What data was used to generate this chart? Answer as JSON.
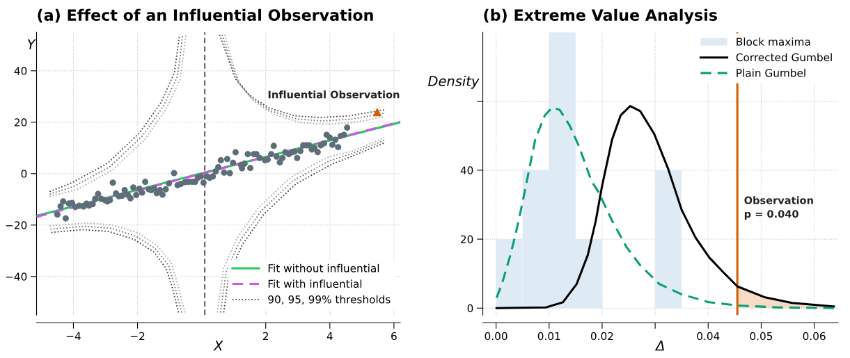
{
  "chart_data": [
    {
      "type": "scatter",
      "title": "(a) Effect of an Influential Observation",
      "xlabel": "X",
      "ylabel": "Y",
      "xlim": [
        -5.15,
        6.2
      ],
      "ylim": [
        -55,
        55
      ],
      "xticks": [
        {
          "value": -4,
          "label": "−4"
        },
        {
          "value": -2,
          "label": "−2"
        },
        2,
        4,
        6
      ],
      "yticks": [
        {
          "value": -40,
          "label": "−40"
        },
        {
          "value": -20,
          "label": "−20"
        },
        0,
        20,
        40
      ],
      "grid": true,
      "legend": "bottom right",
      "ref_lines": [
        {
          "axis": "x",
          "value": 0.1,
          "color": "#222222",
          "line_style": "dashed"
        }
      ],
      "annotations": [
        {
          "text": "Influential Observation",
          "x": 5.48,
          "y": 24.0
        }
      ],
      "series": [
        {
          "marker": "circle",
          "color": "#5e6e78",
          "x": [
            -4.5,
            -4.4,
            -4.32,
            -4.24,
            -4.14,
            -4.04,
            -3.94,
            -3.82,
            -3.68,
            -3.59,
            -3.51,
            -3.4,
            -3.32,
            -3.23,
            -3.13,
            -3.02,
            -2.94,
            -2.86,
            -2.77,
            -2.67,
            -2.58,
            -2.48,
            -2.4,
            -2.3,
            -2.22,
            -2.13,
            -2.04,
            -1.94,
            -1.86,
            -1.76,
            -1.65,
            -1.57,
            -1.48,
            -1.4,
            -1.3,
            -1.22,
            -1.12,
            -1.02,
            -0.86,
            -0.75,
            -0.65,
            -0.52,
            -0.41,
            -0.3,
            -0.2,
            -0.12,
            -0.02,
            0.06,
            0.17,
            0.25,
            0.35,
            0.44,
            0.52,
            0.6,
            0.7,
            0.8,
            0.88,
            0.98,
            1.06,
            1.23,
            1.26,
            1.34,
            1.44,
            1.52,
            1.63,
            1.71,
            1.81,
            1.98,
            2.06,
            2.17,
            2.25,
            2.34,
            2.44,
            2.52,
            2.61,
            2.72,
            2.82,
            2.9,
            2.98,
            3.08,
            3.17,
            3.27,
            3.36,
            3.44,
            3.52,
            3.62,
            3.72,
            3.82,
            3.9,
            4.0,
            4.08,
            4.17,
            4.26,
            4.34,
            4.44,
            4.54
          ],
          "values": [
            -15.9,
            -12.7,
            -10.8,
            -17.4,
            -11.6,
            -11.4,
            -13.0,
            -12.5,
            -12.8,
            -11.7,
            -12.4,
            -11.9,
            -9.8,
            -7.9,
            -9.8,
            -10.3,
            -10.8,
            -10.3,
            -3.5,
            -7.7,
            -8.8,
            -8.6,
            -6.4,
            -8.3,
            -9.6,
            -5.4,
            -8.3,
            -5.9,
            -7.4,
            -3.2,
            -6.1,
            -6.4,
            -5.7,
            -7.6,
            -6.4,
            -8.2,
            -6.1,
            -3.8,
            0.2,
            -4.5,
            -4.0,
            -3.3,
            -3.2,
            -3.2,
            -3.2,
            -1.6,
            -1.1,
            -3.5,
            -1.1,
            -1.6,
            -1.1,
            0.9,
            2.5,
            5.2,
            0.4,
            5.7,
            0.2,
            4.2,
            8.3,
            3.4,
            2.1,
            3.9,
            7.6,
            2.2,
            7.6,
            7.6,
            6.1,
            5.2,
            5.5,
            7.6,
            10.8,
            6.6,
            4.4,
            6.1,
            8.3,
            7.6,
            8.3,
            8.6,
            6.1,
            8.8,
            11.0,
            11.0,
            11.0,
            9.4,
            10.0,
            8.4,
            11.0,
            11.8,
            15.1,
            14.0,
            11.2,
            13.2,
            10.3,
            14.7,
            15.1,
            17.9
          ]
        },
        {
          "marker": "triangle",
          "color": "#d55e00",
          "x": [
            5.48
          ],
          "values": [
            24.0
          ]
        },
        {
          "type": "line",
          "name": "Fit without influential",
          "color": "#1fcc55",
          "line_style": "solid",
          "x": [
            -5.15,
            6.2
          ],
          "values": [
            -16.4,
            20.0
          ]
        },
        {
          "type": "line",
          "name": "Fit with influential",
          "color": "#cc55ee",
          "line_style": "dashed",
          "x": [
            -5.15,
            6.2
          ],
          "values": [
            -16.8,
            20.2
          ]
        },
        {
          "type": "line",
          "name": "90, 95, 99% thresholds",
          "color": "#444444",
          "line_style": "dotted",
          "x": [
            0.56,
            0.82,
            1.05,
            1.5,
            2.1,
            2.9,
            3.7,
            4.6,
            5.7
          ],
          "values": [
            54,
            45,
            37,
            30.4,
            25.6,
            22.5,
            21.8,
            22.5,
            24.8
          ]
        },
        {
          "type": "line",
          "color": "#777777",
          "line_style": "dotted",
          "x": [
            0.64,
            0.9,
            1.13,
            1.58,
            2.18,
            2.98,
            3.78,
            4.68,
            5.7
          ],
          "values": [
            54,
            43.7,
            35.7,
            29.1,
            24.3,
            21.2,
            20.5,
            21.2,
            23.5
          ]
        },
        {
          "type": "line",
          "color": "#aaaaaa",
          "line_style": "dotted",
          "x": [
            0.72,
            0.98,
            1.21,
            1.66,
            2.26,
            3.06,
            3.86,
            4.76,
            5.7
          ],
          "values": [
            54,
            42.4,
            34.4,
            27.8,
            23,
            19.9,
            19.2,
            19.9,
            22.2
          ]
        },
        {
          "type": "line",
          "color": "#444444",
          "line_style": "dotted",
          "x": [
            -0.72,
            -0.9,
            -1.1,
            -1.5,
            -2.1,
            -2.9,
            -3.7,
            -4.74
          ],
          "values": [
            -54,
            -45,
            -37,
            -30.4,
            -25.6,
            -22.5,
            -21.8,
            -22.9
          ]
        },
        {
          "type": "line",
          "color": "#777777",
          "line_style": "dotted",
          "x": [
            -0.62,
            -0.84,
            -1.03,
            -1.45,
            -2.05,
            -2.85,
            -3.65,
            -4.74
          ],
          "values": [
            -54,
            -43.7,
            -35.7,
            -29.1,
            -24.3,
            -21.2,
            -20.5,
            -21.6
          ]
        },
        {
          "type": "line",
          "color": "#aaaaaa",
          "line_style": "dotted",
          "x": [
            -0.52,
            -0.76,
            -0.96,
            -1.4,
            -2.0,
            -2.8,
            -3.6,
            -4.74
          ],
          "values": [
            -54,
            -42.4,
            -34.4,
            -27.8,
            -23,
            -19.9,
            -19.2,
            -20.3
          ]
        },
        {
          "type": "line",
          "color": "#444444",
          "line_style": "dotted",
          "x": [
            -4.74,
            -4.07,
            -2.94,
            -1.94,
            -1.27,
            -0.85,
            -0.69
          ],
          "values": [
            -7.0,
            -3.7,
            4.0,
            15.8,
            27.6,
            39.2,
            54
          ]
        },
        {
          "type": "line",
          "color": "#777777",
          "line_style": "dotted",
          "x": [
            -4.74,
            -3.99,
            -2.86,
            -1.86,
            -1.19,
            -0.75,
            -0.59
          ],
          "values": [
            -8.0,
            -5.0,
            2.7,
            14.5,
            26.3,
            37.9,
            54
          ]
        },
        {
          "type": "line",
          "color": "#aaaaaa",
          "line_style": "dotted",
          "x": [
            -4.74,
            -3.91,
            -2.78,
            -1.78,
            -1.11,
            -0.67,
            -0.49
          ],
          "values": [
            -8.9,
            -6.3,
            1.4,
            13.2,
            25,
            36.6,
            54
          ]
        },
        {
          "type": "line",
          "color": "#444444",
          "line_style": "dotted",
          "x": [
            0.69,
            0.85,
            1.27,
            1.94,
            2.94,
            4.07,
            4.74,
            5.7
          ],
          "values": [
            -54,
            -39.2,
            -27.6,
            -15.8,
            -4.0,
            3.7,
            7.0,
            12.0
          ]
        },
        {
          "type": "line",
          "color": "#777777",
          "line_style": "dotted",
          "x": [
            0.59,
            0.77,
            1.19,
            1.86,
            2.86,
            3.99,
            4.74,
            5.7
          ],
          "values": [
            -54,
            -37.9,
            -26.3,
            -14.5,
            -2.7,
            5.0,
            8.0,
            13.0
          ]
        },
        {
          "type": "line",
          "color": "#aaaaaa",
          "line_style": "dotted",
          "x": [
            0.49,
            0.69,
            1.11,
            1.78,
            2.78,
            3.91,
            4.74,
            5.7
          ],
          "values": [
            -54,
            -36.6,
            -25,
            -13.2,
            -1.4,
            6.3,
            8.9,
            14.0
          ]
        }
      ]
    },
    {
      "type": "histogram",
      "title": "(b) Extreme Value Analysis",
      "xlabel": "Δ",
      "ylabel": "Density",
      "xlim": [
        -0.0025,
        0.0645
      ],
      "ylim": [
        -2,
        80
      ],
      "xticks": [
        {
          "value": 0,
          "label": "0.00"
        },
        {
          "value": 0.01,
          "label": "0.01"
        },
        {
          "value": 0.02,
          "label": "0.02"
        },
        {
          "value": 0.03,
          "label": null
        },
        {
          "value": 0.04,
          "label": "0.04"
        },
        {
          "value": 0.05,
          "label": "0.05"
        },
        {
          "value": 0.06,
          "label": "0.06"
        }
      ],
      "yticks": [
        0,
        20,
        40,
        {
          "value": 60,
          "label": null
        }
      ],
      "grid": true,
      "legend": "top right",
      "bins": [
        0,
        0.005,
        0.01,
        0.015,
        0.02,
        0.025,
        0.03,
        0.035
      ],
      "ref_lines": [
        {
          "axis": "x",
          "value": 0.0455,
          "color": "#d55e00",
          "line_style": "solid"
        }
      ],
      "annotations": [
        "Observation\np = 0.040"
      ],
      "series": [
        {
          "name": "Block maxima",
          "color": "#deebf5",
          "values": [
            20,
            40,
            80,
            20,
            0,
            0,
            40
          ]
        },
        {
          "type": "area",
          "color": "#f6dcc6",
          "x": [
            0.0455,
            0.0506,
            0.0558,
            0.0637
          ],
          "values": [
            6.3,
            3.2,
            1.5,
            0.5
          ]
        },
        {
          "type": "line",
          "name": "Corrected Gumbel",
          "color": "#000000",
          "line_style": "solid",
          "x": [
            0.0001,
            0.0094,
            0.0126,
            0.0152,
            0.0173,
            0.0188,
            0.02,
            0.0219,
            0.0235,
            0.0253,
            0.0272,
            0.0298,
            0.0324,
            0.035,
            0.0376,
            0.0402,
            0.0428,
            0.0455,
            0.0506,
            0.0558,
            0.0637
          ],
          "values": [
            0,
            0.2,
            1.7,
            7.0,
            15.4,
            25.3,
            35.5,
            49.0,
            55.9,
            58.6,
            57.1,
            50.6,
            40.6,
            28.5,
            20.5,
            14.7,
            10.5,
            6.3,
            3.2,
            1.5,
            0.5
          ]
        },
        {
          "type": "line",
          "name": "Plain Gumbel",
          "color": "#0a9e73",
          "line_style": "dashed",
          "x": [
            0.0001,
            0.0011,
            0.0027,
            0.0037,
            0.005,
            0.0058,
            0.0074,
            0.0092,
            0.0106,
            0.012,
            0.0139,
            0.0157,
            0.018,
            0.0193,
            0.0219,
            0.0246,
            0.0272,
            0.0308,
            0.035,
            0.0402,
            0.0454,
            0.0532,
            0.0637
          ],
          "values": [
            3.0,
            7.0,
            15.4,
            21.5,
            30.7,
            36.8,
            49.0,
            55.9,
            58.2,
            57.5,
            52.9,
            46.7,
            36.8,
            33.7,
            25.3,
            17.7,
            12.4,
            7.0,
            4.0,
            1.7,
            0.8,
            0.2,
            0.0
          ]
        }
      ]
    }
  ]
}
